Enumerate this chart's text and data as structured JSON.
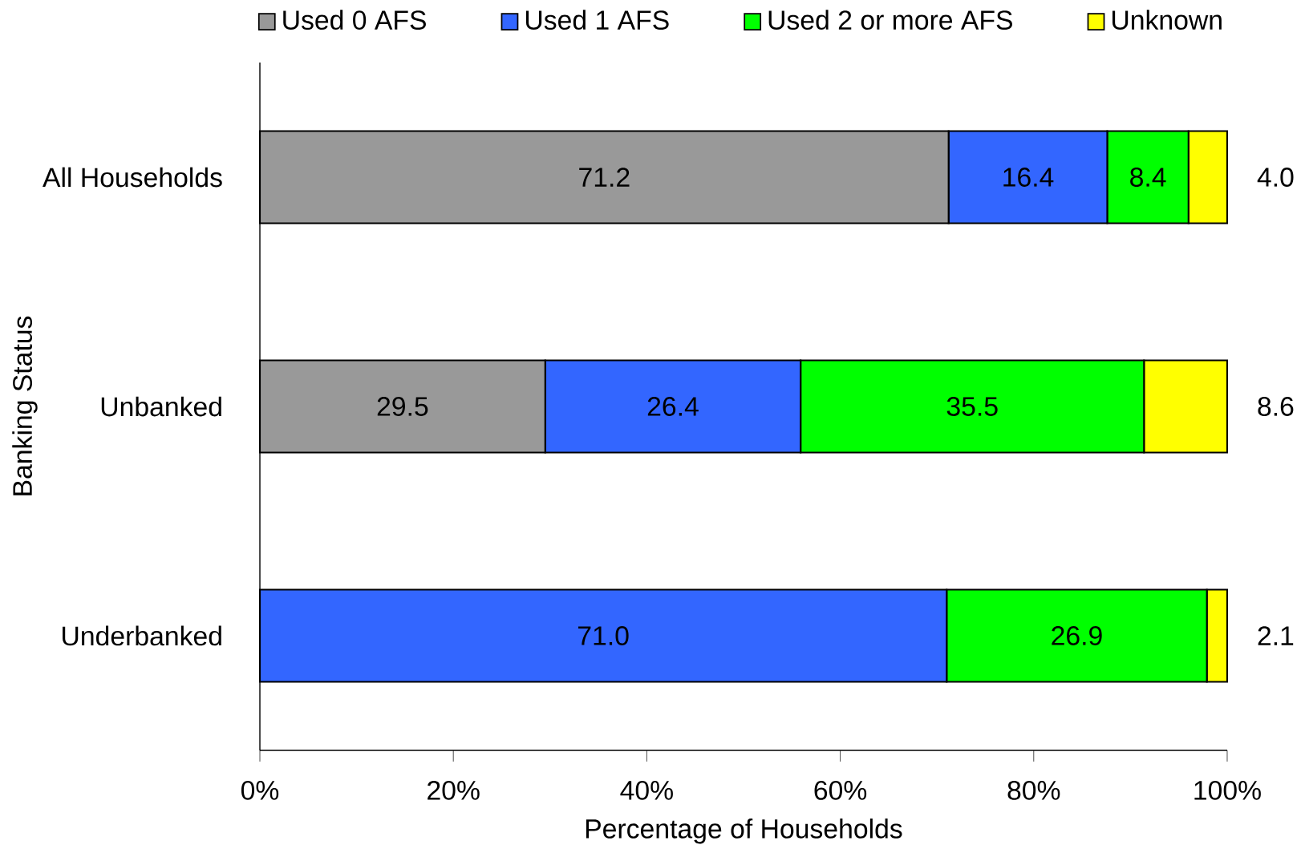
{
  "chart_data": {
    "type": "bar",
    "orientation": "horizontal",
    "stacked": true,
    "xlabel": "Percentage of Households",
    "ylabel": "Banking Status",
    "categories": [
      "All Households",
      "Unbanked",
      "Underbanked"
    ],
    "series": [
      {
        "name": "Used 0 AFS",
        "color": "#999999",
        "values": [
          71.2,
          29.5,
          0
        ],
        "value_labels": [
          "71.2",
          "29.5",
          null
        ]
      },
      {
        "name": "Used 1 AFS",
        "color": "#3366ff",
        "values": [
          16.4,
          26.4,
          71.0
        ],
        "value_labels": [
          "16.4",
          "26.4",
          "71.0"
        ]
      },
      {
        "name": "Used 2 or more AFS",
        "color": "#00ff00",
        "values": [
          8.4,
          35.5,
          26.9
        ],
        "value_labels": [
          "8.4",
          "35.5",
          "26.9"
        ]
      },
      {
        "name": "Unknown",
        "color": "#ffff00",
        "values": [
          4.0,
          8.6,
          2.1
        ],
        "value_labels": [
          "4.0",
          "8.6",
          "2.1"
        ]
      }
    ],
    "xlim": [
      0,
      100
    ],
    "xticks": [
      {
        "value": 0,
        "label": "0%"
      },
      {
        "value": 20,
        "label": "20%"
      },
      {
        "value": 40,
        "label": "40%"
      },
      {
        "value": 60,
        "label": "60%"
      },
      {
        "value": 80,
        "label": "80%"
      },
      {
        "value": 100,
        "label": "100%"
      }
    ],
    "legend": "top",
    "grid": false
  }
}
